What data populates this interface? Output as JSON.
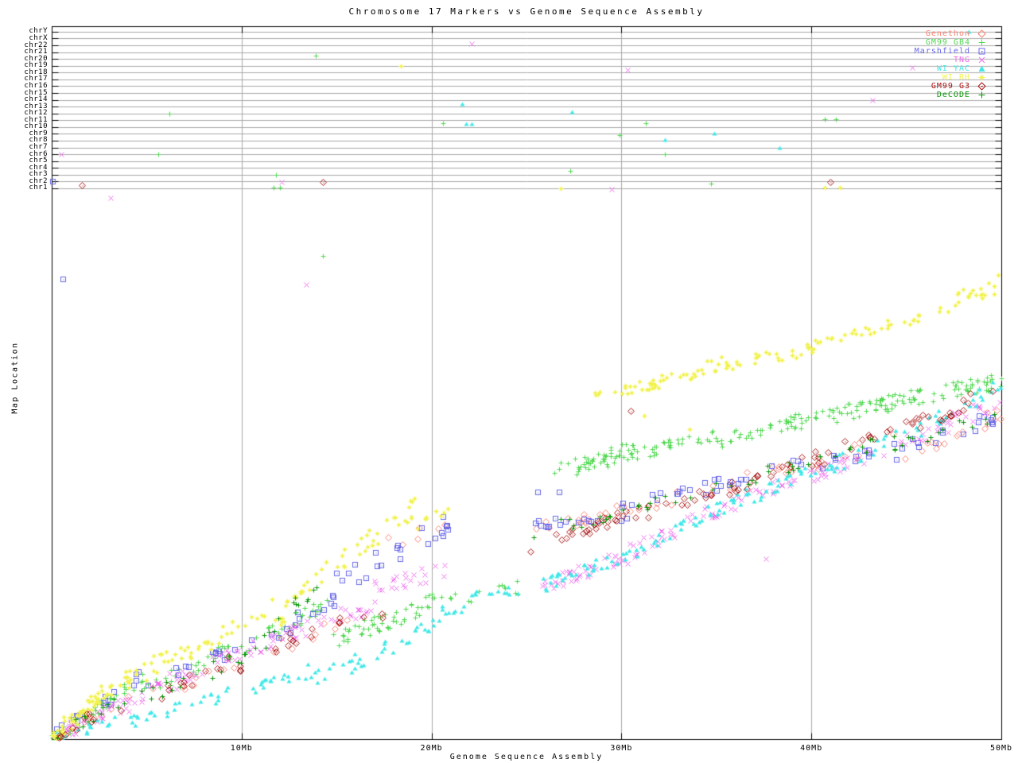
{
  "title": "Chromosome 17 Markers vs Genome Sequence Assembly",
  "axes": {
    "x_label": "Genome Sequence Assembly",
    "y_label": "Map Location",
    "x_ticks": [
      "10Mb",
      "20Mb",
      "30Mb",
      "40Mb",
      "50Mb"
    ],
    "x_tick_mb": [
      10,
      20,
      30,
      40,
      50
    ],
    "x_range_mb": [
      0,
      50
    ]
  },
  "chart_data": {
    "type": "scatter",
    "title": "Chromosome 17 Markers vs Genome Sequence Assembly",
    "xlabel": "Genome Sequence Assembly",
    "ylabel": "Map Location",
    "x_unit": "Mb",
    "x_range": [
      0,
      50
    ],
    "grid_mb": [
      10,
      20,
      30,
      40
    ],
    "y_note": "y values are map location as fraction of plot height (0=bottom axis, 1=top axis); chromosome gridline rows occupy fractions 0.7726 (chr1) to 0.9923 (chrY)",
    "chromosomes": [
      "chr1",
      "chr2",
      "chr3",
      "chr4",
      "chr5",
      "chr6",
      "chr7",
      "chr8",
      "chr9",
      "chr10",
      "chr11",
      "chr12",
      "chr13",
      "chr14",
      "chr15",
      "chr16",
      "chr17",
      "chr18",
      "chr19",
      "chr20",
      "chr21",
      "chr22",
      "chrX",
      "chrY"
    ],
    "chr_row_frac_first": 0.7726,
    "chr_row_frac_last": 0.9923,
    "legend_position": "top-right",
    "series": [
      {
        "name": "Genethon",
        "color": "#fa8072",
        "marker": "open-diamond",
        "seed": 11,
        "segments": [
          [
            0.3,
            4.0,
            0.005,
            0.05,
            10,
            0.01
          ],
          [
            4.0,
            9.8,
            0.05,
            0.11,
            9,
            0.012
          ],
          [
            9.8,
            16.0,
            0.105,
            0.175,
            9,
            0.012
          ],
          [
            17.4,
            20.8,
            0.275,
            0.3,
            6,
            0.01
          ],
          [
            25.1,
            29.5,
            0.295,
            0.315,
            14,
            0.008
          ],
          [
            29.5,
            35.0,
            0.315,
            0.358,
            12,
            0.01
          ],
          [
            35.0,
            40.0,
            0.355,
            0.39,
            10,
            0.01
          ],
          [
            40.0,
            44.5,
            0.385,
            0.42,
            10,
            0.012
          ],
          [
            44.5,
            48.0,
            0.4,
            0.43,
            10,
            0.014
          ],
          [
            48.0,
            50.0,
            0.43,
            0.46,
            6,
            0.012
          ]
        ],
        "stray_points": []
      },
      {
        "name": "GM99 GB4",
        "color": "#52d952",
        "marker": "plus",
        "seed": 22,
        "segments": [
          [
            0.1,
            4.8,
            0.002,
            0.085,
            45,
            0.012
          ],
          [
            4.8,
            9.8,
            0.07,
            0.13,
            30,
            0.012
          ],
          [
            9.8,
            14.8,
            0.125,
            0.195,
            30,
            0.012
          ],
          [
            14.8,
            17.5,
            0.14,
            0.165,
            30,
            0.012
          ],
          [
            17.5,
            20.5,
            0.16,
            0.2,
            25,
            0.012
          ],
          [
            20.5,
            24.5,
            0.195,
            0.212,
            14,
            0.01
          ],
          [
            26.5,
            30.8,
            0.375,
            0.405,
            55,
            0.014
          ],
          [
            30.8,
            35.0,
            0.398,
            0.428,
            30,
            0.01
          ],
          [
            35.0,
            39.2,
            0.418,
            0.448,
            35,
            0.01
          ],
          [
            39.2,
            43.4,
            0.445,
            0.468,
            40,
            0.012
          ],
          [
            43.4,
            47.0,
            0.468,
            0.49,
            40,
            0.012
          ],
          [
            47.0,
            50.0,
            0.487,
            0.503,
            35,
            0.012
          ]
        ],
        "stray_points": [
          [
            13.9,
            0.959
          ],
          [
            20.6,
            0.864
          ],
          [
            31.3,
            0.864
          ],
          [
            29.9,
            0.847
          ],
          [
            32.3,
            0.82
          ],
          [
            27.3,
            0.797
          ],
          [
            34.7,
            0.779
          ],
          [
            40.7,
            0.87
          ],
          [
            41.3,
            0.87
          ],
          [
            11.7,
            0.774
          ],
          [
            12.0,
            0.774
          ],
          [
            11.8,
            0.792
          ],
          [
            5.6,
            0.82
          ],
          [
            6.2,
            0.877
          ],
          [
            14.3,
            0.678
          ]
        ]
      },
      {
        "name": "Marshfield",
        "color": "#6868e8",
        "marker": "open-square-dot",
        "seed": 33,
        "segments": [
          [
            0.2,
            4.8,
            0.005,
            0.09,
            16,
            0.012
          ],
          [
            4.8,
            9.8,
            0.082,
            0.125,
            12,
            0.01
          ],
          [
            9.8,
            15.0,
            0.12,
            0.2,
            15,
            0.012
          ],
          [
            15.0,
            20.7,
            0.22,
            0.3,
            18,
            0.014
          ],
          [
            20.5,
            21.0,
            0.29,
            0.3,
            4,
            0.008
          ],
          [
            25.1,
            29.5,
            0.3,
            0.312,
            14,
            0.008
          ],
          [
            29.5,
            35.0,
            0.315,
            0.36,
            16,
            0.012
          ],
          [
            35.0,
            39.5,
            0.355,
            0.385,
            12,
            0.01
          ],
          [
            39.5,
            44.0,
            0.38,
            0.41,
            10,
            0.01
          ],
          [
            44.0,
            48.0,
            0.4,
            0.43,
            10,
            0.012
          ],
          [
            48.0,
            50.0,
            0.43,
            0.457,
            8,
            0.012
          ]
        ],
        "stray_points": [
          [
            0.05,
            0.783
          ],
          [
            0.6,
            0.646
          ],
          [
            25.6,
            0.347
          ],
          [
            26.7,
            0.347
          ]
        ]
      },
      {
        "name": "TNG",
        "color": "#ec6cec",
        "marker": "cross",
        "seed": 44,
        "segments": [
          [
            0.1,
            3.2,
            0.002,
            0.045,
            25,
            0.01
          ],
          [
            3.2,
            8.2,
            0.04,
            0.105,
            35,
            0.012
          ],
          [
            8.2,
            12.4,
            0.1,
            0.15,
            30,
            0.012
          ],
          [
            12.4,
            17.0,
            0.145,
            0.19,
            30,
            0.012
          ],
          [
            17.0,
            20.8,
            0.21,
            0.24,
            22,
            0.012
          ],
          [
            25.8,
            30.0,
            0.212,
            0.256,
            40,
            0.01
          ],
          [
            30.0,
            35.0,
            0.255,
            0.323,
            35,
            0.012
          ],
          [
            35.0,
            39.2,
            0.32,
            0.368,
            28,
            0.01
          ],
          [
            39.2,
            44.2,
            0.362,
            0.412,
            28,
            0.01
          ],
          [
            44.2,
            50.0,
            0.41,
            0.474,
            32,
            0.012
          ]
        ],
        "stray_points": [
          [
            0.5,
            0.821
          ],
          [
            3.1,
            0.759
          ],
          [
            12.1,
            0.781
          ],
          [
            13.4,
            0.638
          ],
          [
            22.1,
            0.975
          ],
          [
            30.3,
            0.939
          ],
          [
            45.3,
            0.942
          ],
          [
            43.2,
            0.896
          ],
          [
            29.5,
            0.771
          ],
          [
            37.6,
            0.253
          ]
        ]
      },
      {
        "name": "WI YAC",
        "color": "#40e8e8",
        "marker": "filled-triangle",
        "seed": 55,
        "segments": [
          [
            0.2,
            4.0,
            0.002,
            0.03,
            15,
            0.008
          ],
          [
            4.0,
            9.8,
            0.025,
            0.068,
            25,
            0.01
          ],
          [
            9.8,
            14.0,
            0.06,
            0.1,
            20,
            0.01
          ],
          [
            14.0,
            18.2,
            0.085,
            0.134,
            20,
            0.012
          ],
          [
            18.2,
            22.4,
            0.134,
            0.206,
            25,
            0.012
          ],
          [
            22.4,
            24.6,
            0.2,
            0.212,
            8,
            0.008
          ],
          [
            25.8,
            30.0,
            0.215,
            0.258,
            30,
            0.01
          ],
          [
            30.0,
            33.3,
            0.256,
            0.3,
            20,
            0.01
          ],
          [
            33.3,
            36.7,
            0.3,
            0.345,
            22,
            0.012
          ],
          [
            36.7,
            40.8,
            0.34,
            0.385,
            20,
            0.01
          ],
          [
            40.8,
            45.0,
            0.38,
            0.43,
            20,
            0.012
          ],
          [
            45.0,
            50.0,
            0.428,
            0.498,
            25,
            0.012
          ]
        ],
        "stray_points": [
          [
            48.3,
            0.992
          ],
          [
            27.4,
            0.88
          ],
          [
            21.6,
            0.891
          ],
          [
            21.8,
            0.863
          ],
          [
            22.1,
            0.863
          ],
          [
            34.9,
            0.85
          ],
          [
            38.3,
            0.829
          ],
          [
            32.3,
            0.841
          ]
        ]
      },
      {
        "name": "WI RH",
        "color": "#f2f24f",
        "marker": "star",
        "seed": 66,
        "segments": [
          [
            0.1,
            2.5,
            0.002,
            0.062,
            40,
            0.012
          ],
          [
            1.5,
            7.0,
            0.045,
            0.13,
            45,
            0.015
          ],
          [
            7.0,
            11.5,
            0.115,
            0.19,
            25,
            0.012
          ],
          [
            11.5,
            15.0,
            0.16,
            0.26,
            22,
            0.015
          ],
          [
            15.0,
            19.0,
            0.245,
            0.325,
            28,
            0.015
          ],
          [
            19.0,
            21.0,
            0.3,
            0.315,
            8,
            0.01
          ],
          [
            28.5,
            32.0,
            0.485,
            0.5,
            26,
            0.008
          ],
          [
            32.0,
            35.5,
            0.5,
            0.53,
            22,
            0.01
          ],
          [
            35.5,
            39.5,
            0.525,
            0.545,
            22,
            0.008
          ],
          [
            39.5,
            42.0,
            0.545,
            0.567,
            16,
            0.008
          ],
          [
            42.0,
            45.8,
            0.567,
            0.594,
            20,
            0.008
          ],
          [
            45.8,
            49.9,
            0.594,
            0.641,
            22,
            0.012
          ]
        ],
        "stray_points": [
          [
            18.4,
            0.9446
          ],
          [
            26.8,
            0.7726
          ],
          [
            40.7,
            0.774
          ],
          [
            41.5,
            0.774
          ],
          [
            31.2,
            0.454
          ],
          [
            33.6,
            0.435
          ]
        ]
      },
      {
        "name": "GM99 G3",
        "color": "#aa1515",
        "marker": "open-diamond-dot",
        "seed": 77,
        "segments": [
          [
            0.3,
            4.0,
            0.005,
            0.055,
            12,
            0.01
          ],
          [
            4.0,
            9.8,
            0.05,
            0.11,
            12,
            0.012
          ],
          [
            9.8,
            14.5,
            0.105,
            0.165,
            12,
            0.012
          ],
          [
            14.5,
            18.0,
            0.165,
            0.178,
            6,
            0.008
          ],
          [
            26.3,
            30.0,
            0.278,
            0.312,
            22,
            0.008
          ],
          [
            30.0,
            35.0,
            0.31,
            0.35,
            15,
            0.01
          ],
          [
            35.0,
            39.2,
            0.345,
            0.385,
            15,
            0.01
          ],
          [
            39.2,
            43.4,
            0.38,
            0.43,
            15,
            0.012
          ],
          [
            43.4,
            46.5,
            0.425,
            0.45,
            10,
            0.01
          ],
          [
            46.5,
            49.5,
            0.45,
            0.49,
            12,
            0.01
          ]
        ],
        "stray_points": [
          [
            1.6,
            0.777
          ],
          [
            14.3,
            0.781
          ],
          [
            41.0,
            0.781
          ],
          [
            30.5,
            0.46
          ],
          [
            25.2,
            0.263
          ]
        ]
      },
      {
        "name": "DeCODE",
        "color": "#089708",
        "marker": "plus",
        "seed": 88,
        "segments": [
          [
            0.3,
            4.0,
            0.005,
            0.055,
            12,
            0.01
          ],
          [
            4.0,
            9.8,
            0.05,
            0.112,
            12,
            0.012
          ],
          [
            9.8,
            12.4,
            0.105,
            0.17,
            10,
            0.012
          ],
          [
            12.4,
            14.2,
            0.185,
            0.21,
            8,
            0.01
          ],
          [
            25.2,
            29.5,
            0.29,
            0.315,
            12,
            0.01
          ],
          [
            29.5,
            35.0,
            0.312,
            0.355,
            12,
            0.01
          ],
          [
            35.0,
            39.2,
            0.35,
            0.385,
            10,
            0.01
          ],
          [
            39.2,
            44.2,
            0.38,
            0.42,
            10,
            0.01
          ],
          [
            44.2,
            48.5,
            0.415,
            0.44,
            12,
            0.012
          ],
          [
            48.5,
            50.0,
            0.44,
            0.46,
            4,
            0.01
          ]
        ],
        "stray_points": []
      }
    ]
  }
}
